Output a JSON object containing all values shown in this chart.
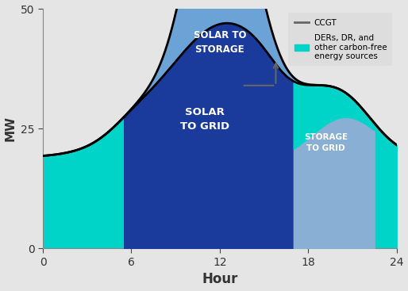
{
  "xlabel": "Hour",
  "ylabel": "MW",
  "xlim": [
    0,
    24
  ],
  "ylim": [
    0,
    50
  ],
  "xticks": [
    0,
    6,
    12,
    18,
    24
  ],
  "yticks": [
    0,
    25,
    50
  ],
  "color_ccgt_line": "#666666",
  "color_solar_to_storage": "#6ba3d6",
  "color_solar_to_grid": "#1a3a9c",
  "color_ders": "#00d4c8",
  "color_storage_to_grid": "#8aafd4",
  "legend_label_ccgt": "CCGT",
  "legend_label_ders": "DERs, DR, and\nother carbon-free\nenergy sources",
  "label_solar_storage": "SOLAR TO\nSTORAGE",
  "label_solar_grid": "SOLAR\nTO GRID",
  "label_storage_grid": "STORAGE\nTO GRID",
  "fig_bg": "#e5e5e5"
}
